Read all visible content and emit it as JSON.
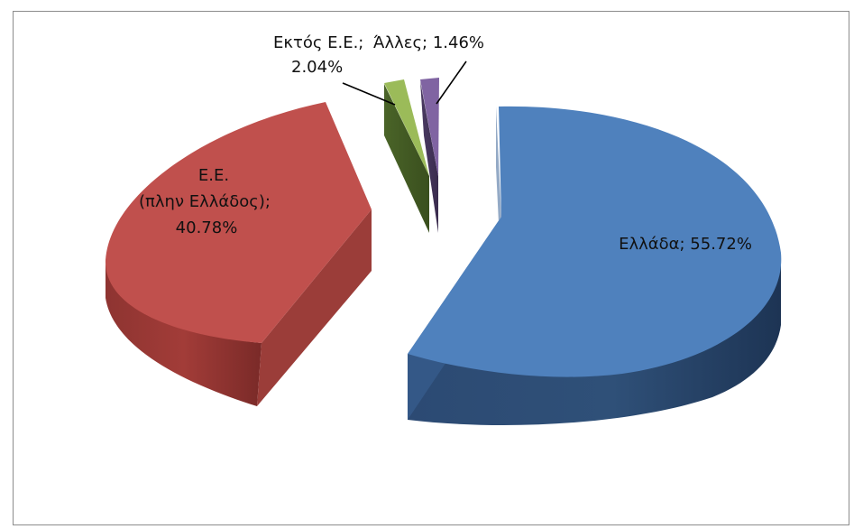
{
  "chart_data": {
    "type": "pie",
    "style": "3d-exploded",
    "title": "",
    "slices": [
      {
        "name": "Ελλάδα",
        "value": 55.72,
        "color": "#4F81BD",
        "label": "Ελλάδα; 55.72%"
      },
      {
        "name": "Ε.Ε. (πλην Ελλάδος)",
        "value": 40.78,
        "color": "#C0504D",
        "label_lines": [
          "Ε.Ε.",
          "(πλην Ελλάδος);",
          "40.78%"
        ]
      },
      {
        "name": "Εκτός Ε.Ε.",
        "value": 2.04,
        "color": "#9BBB59",
        "label_lines": [
          "Εκτός Ε.Ε.;",
          "2.04%"
        ]
      },
      {
        "name": "Άλλες",
        "value": 1.46,
        "color": "#8064A2",
        "label": "Άλλες; 1.46%"
      }
    ],
    "legend": false
  }
}
